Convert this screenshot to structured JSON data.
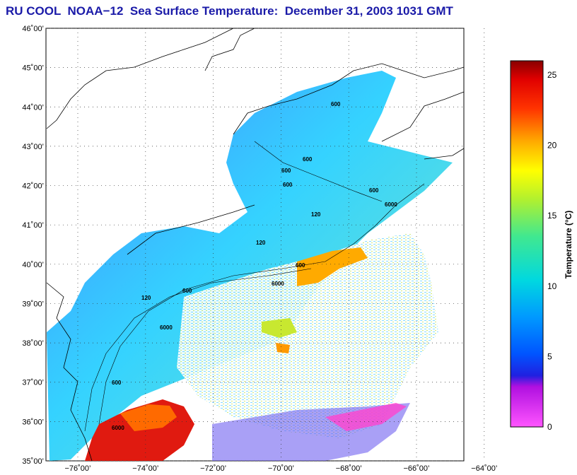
{
  "title": "RU COOL  NOAA−12  Sea Surface Temperature:  December 31, 2003 1031 GMT",
  "map": {
    "lat_labels": [
      "46˚00’",
      "45˚00’",
      "44˚00’",
      "43˚00’",
      "42˚00’",
      "41˚00’",
      "40˚00’",
      "39˚00’",
      "38˚00’",
      "37˚00’",
      "36˚00’",
      "35˚00’"
    ],
    "lon_labels": [
      "−76˚00’",
      "−74˚00’",
      "−72˚00’",
      "−70˚00’",
      "−68˚00’",
      "−66˚00’",
      "−64˚00’"
    ],
    "contour_labels": [
      "600",
      "600",
      "600",
      "600",
      "6000",
      "600",
      "6000",
      "120",
      "600",
      "6000",
      "120",
      "600",
      "6000",
      "120",
      "600"
    ]
  },
  "colorbar": {
    "label": "Temperature (°C)",
    "ticks": [
      "25",
      "20",
      "15",
      "10",
      "5",
      "0"
    ],
    "range": [
      0,
      26
    ]
  }
}
